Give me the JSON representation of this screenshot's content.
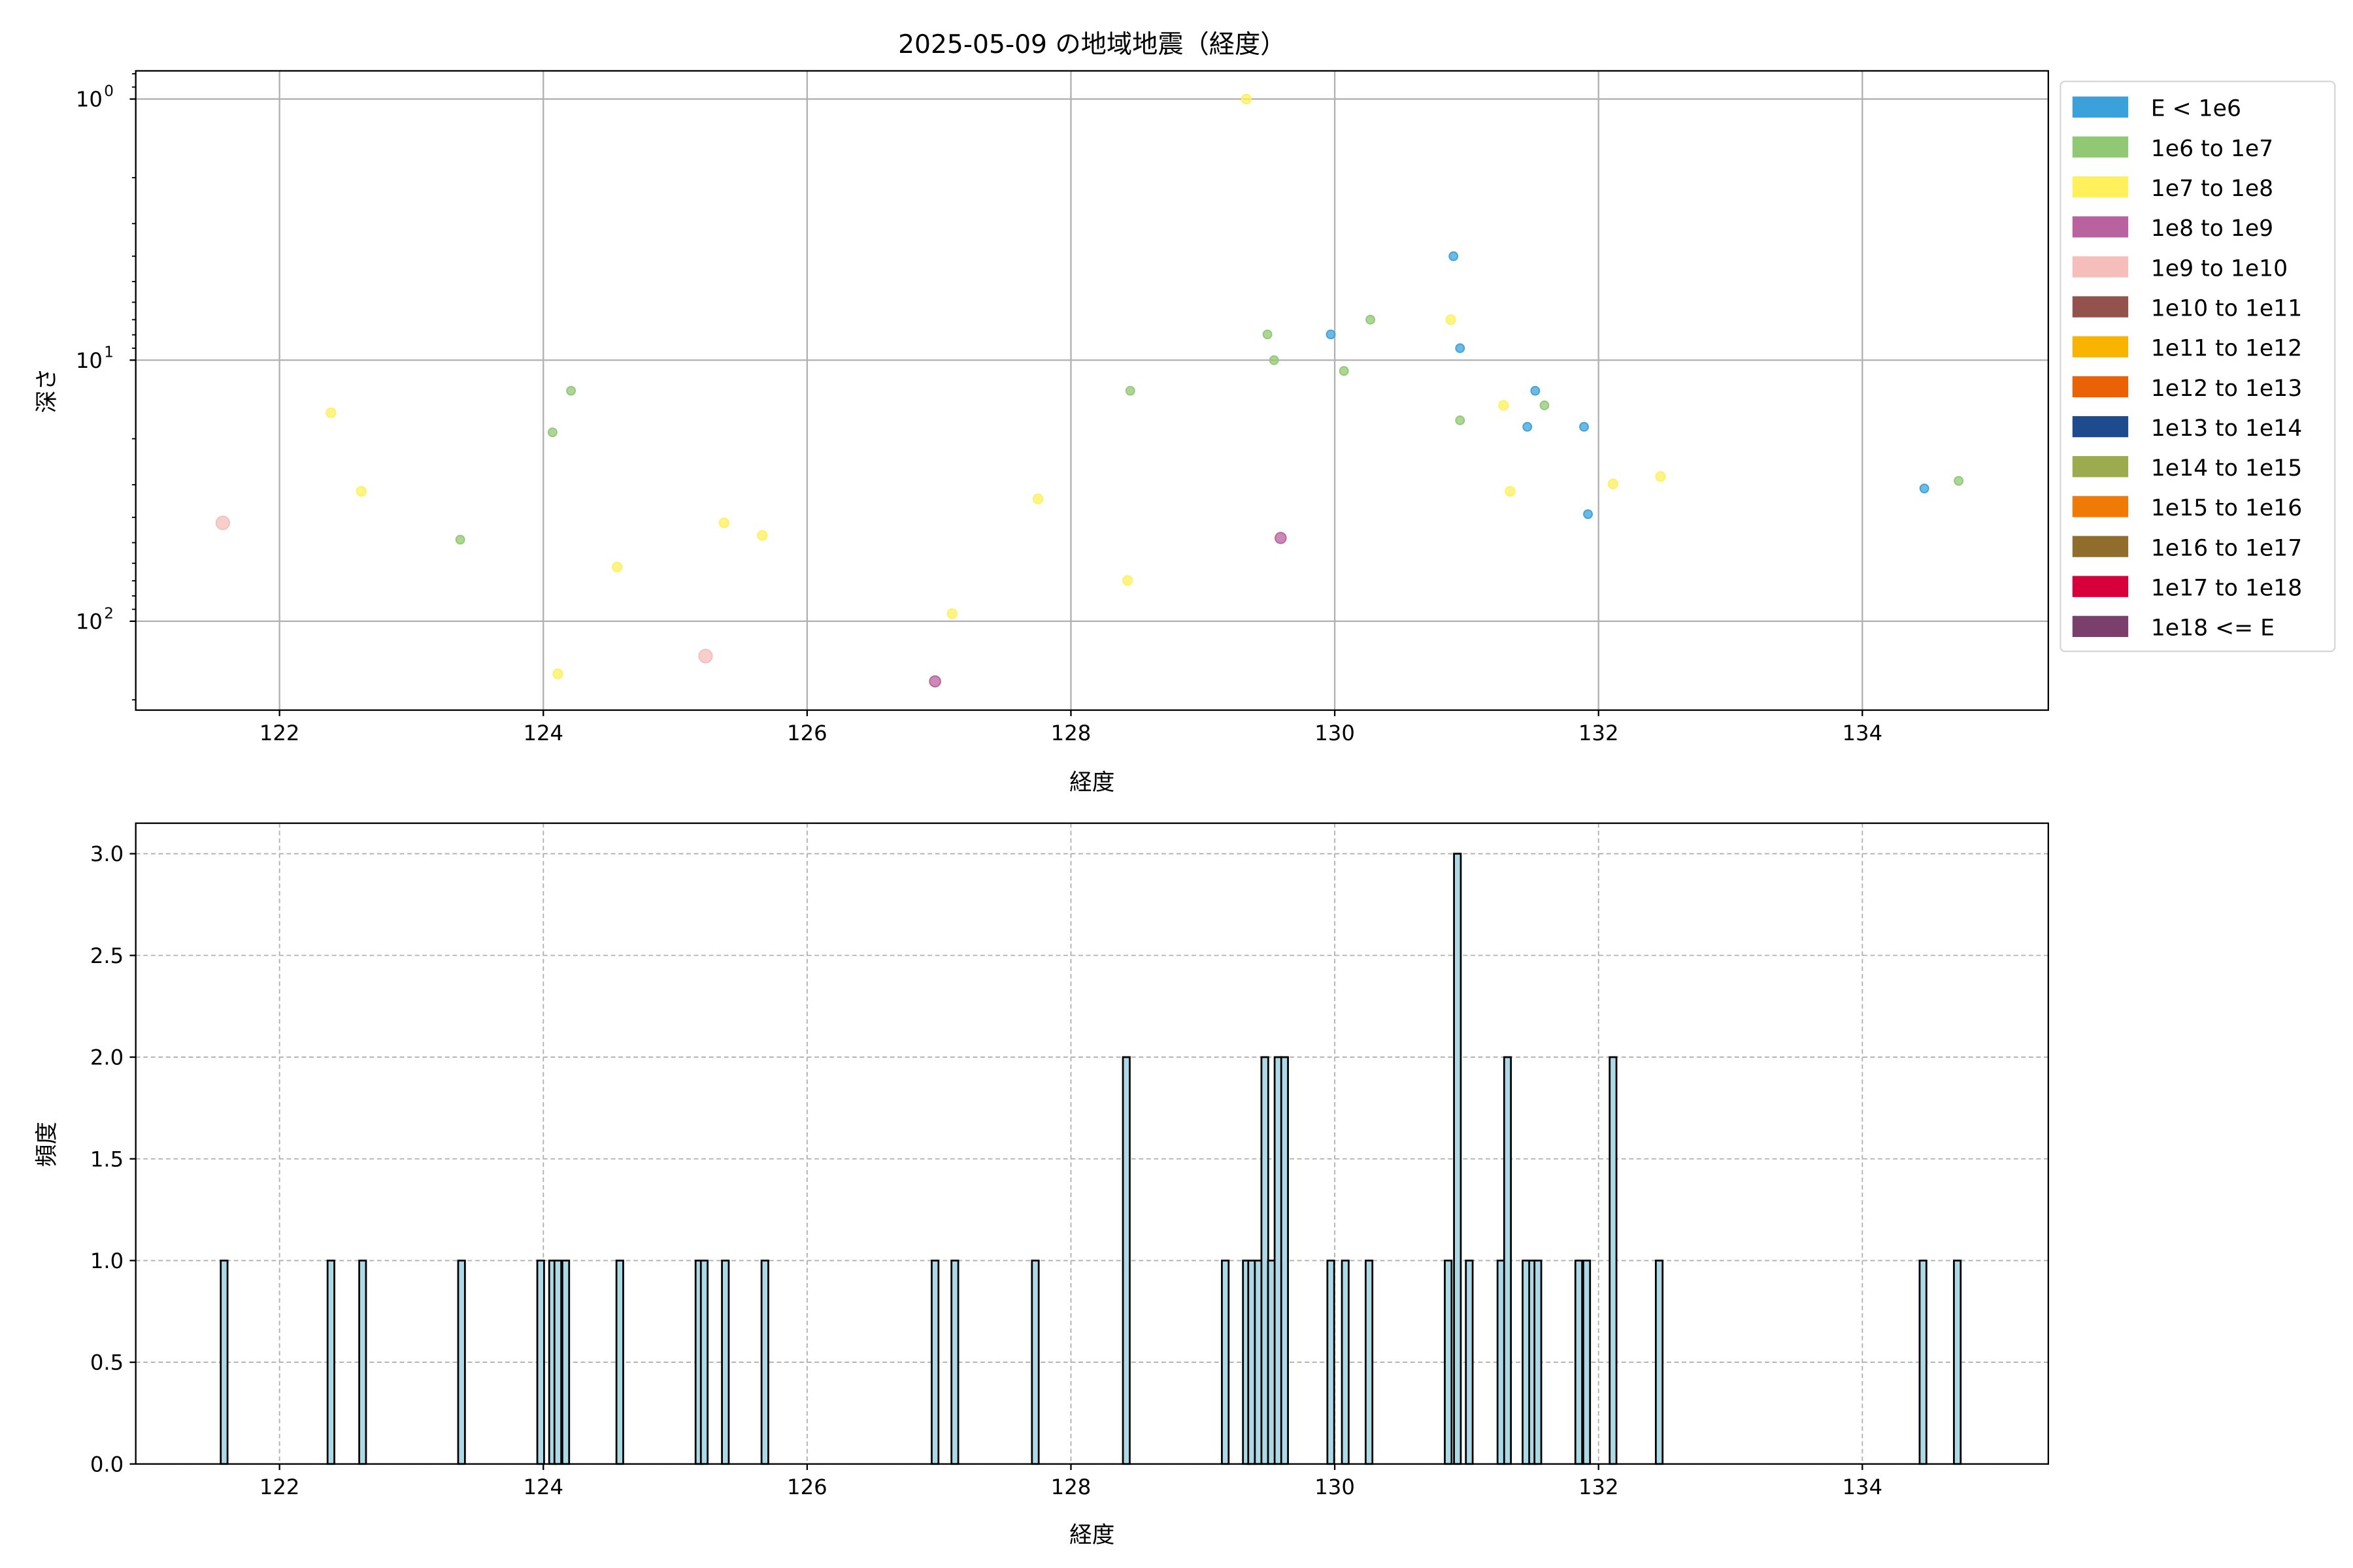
{
  "chart_data": [
    {
      "type": "scatter",
      "title": "2025-05-09 の地域地震（経度）",
      "xlabel": "経度",
      "ylabel": "深さ",
      "xlim": [
        120.91,
        135.41
      ],
      "ylim": [
        219,
        0.78
      ],
      "yscale": "log",
      "y_inverted": true,
      "grid": true,
      "legend_placement": "outside-right",
      "xticks": [
        "122",
        "124",
        "126",
        "128",
        "130",
        "132",
        "134"
      ],
      "yticks": [
        {
          "base": "10",
          "exp": "0",
          "value": 1
        },
        {
          "base": "10",
          "exp": "1",
          "value": 10
        },
        {
          "base": "10",
          "exp": "2",
          "value": 100
        }
      ],
      "legend": [
        {
          "label": "E < 1e6",
          "color": "#3ba1da"
        },
        {
          "label": "1e6 to 1e7",
          "color": "#91c873"
        },
        {
          "label": "1e7 to 1e8",
          "color": "#fff05c"
        },
        {
          "label": "1e8 to 1e9",
          "color": "#b9629f"
        },
        {
          "label": "1e9 to 1e10",
          "color": "#f6bebb"
        },
        {
          "label": "1e10 to 1e11",
          "color": "#94524c"
        },
        {
          "label": "1e11 to 1e12",
          "color": "#f8b400"
        },
        {
          "label": "1e12 to 1e13",
          "color": "#eb6105"
        },
        {
          "label": "1e13 to 1e14",
          "color": "#1e4a8e"
        },
        {
          "label": "1e14 to 1e15",
          "color": "#9bab4e"
        },
        {
          "label": "1e15 to 1e16",
          "color": "#ef7a06"
        },
        {
          "label": "1e16 to 1e17",
          "color": "#906c2d"
        },
        {
          "label": "1e17 to 1e18",
          "color": "#d8003a"
        },
        {
          "label": "1e18 <= E",
          "color": "#7b3f6d"
        }
      ],
      "points": [
        {
          "x": 121.57,
          "y": 42,
          "class": 4
        },
        {
          "x": 122.39,
          "y": 15.9,
          "class": 2
        },
        {
          "x": 122.62,
          "y": 31.8,
          "class": 2
        },
        {
          "x": 123.37,
          "y": 48.7,
          "class": 1
        },
        {
          "x": 124.07,
          "y": 18.9,
          "class": 1
        },
        {
          "x": 124.21,
          "y": 13.1,
          "class": 1
        },
        {
          "x": 124.11,
          "y": 159,
          "class": 2
        },
        {
          "x": 124.56,
          "y": 62,
          "class": 2
        },
        {
          "x": 125.23,
          "y": 136,
          "class": 4
        },
        {
          "x": 125.37,
          "y": 42,
          "class": 2
        },
        {
          "x": 125.66,
          "y": 46.9,
          "class": 2
        },
        {
          "x": 126.97,
          "y": 170,
          "class": 3
        },
        {
          "x": 127.1,
          "y": 93.5,
          "class": 2
        },
        {
          "x": 127.75,
          "y": 34,
          "class": 2
        },
        {
          "x": 128.45,
          "y": 13.1,
          "class": 1
        },
        {
          "x": 128.43,
          "y": 69.8,
          "class": 2
        },
        {
          "x": 129.33,
          "y": 1.0,
          "class": 2
        },
        {
          "x": 129.49,
          "y": 7.97,
          "class": 1
        },
        {
          "x": 129.54,
          "y": 10,
          "class": 1
        },
        {
          "x": 129.59,
          "y": 48,
          "class": 3
        },
        {
          "x": 129.97,
          "y": 7.97,
          "class": 0
        },
        {
          "x": 130.07,
          "y": 11,
          "class": 1
        },
        {
          "x": 130.27,
          "y": 7,
          "class": 1
        },
        {
          "x": 130.9,
          "y": 4,
          "class": 0
        },
        {
          "x": 130.88,
          "y": 7,
          "class": 2
        },
        {
          "x": 130.95,
          "y": 9,
          "class": 0
        },
        {
          "x": 130.95,
          "y": 17,
          "class": 1
        },
        {
          "x": 131.28,
          "y": 14.9,
          "class": 2
        },
        {
          "x": 131.33,
          "y": 31.8,
          "class": 2
        },
        {
          "x": 131.46,
          "y": 18,
          "class": 0
        },
        {
          "x": 131.52,
          "y": 13.1,
          "class": 0
        },
        {
          "x": 131.59,
          "y": 14.9,
          "class": 1
        },
        {
          "x": 131.89,
          "y": 18,
          "class": 0
        },
        {
          "x": 131.92,
          "y": 38.9,
          "class": 0
        },
        {
          "x": 132.11,
          "y": 29.8,
          "class": 2
        },
        {
          "x": 132.47,
          "y": 27.9,
          "class": 2
        },
        {
          "x": 134.47,
          "y": 31,
          "class": 0
        },
        {
          "x": 134.73,
          "y": 29,
          "class": 1
        }
      ]
    },
    {
      "type": "bar",
      "subtype": "histogram",
      "xlabel": "経度",
      "ylabel": "頻度",
      "xlim": [
        120.91,
        135.41
      ],
      "ylim": [
        0,
        3.15
      ],
      "grid": true,
      "grid_style": "dashed",
      "bar_color": "#add8e6",
      "edge_color": "#000000",
      "bin_width": 0.0514,
      "xticks": [
        "122",
        "124",
        "126",
        "128",
        "130",
        "132",
        "134"
      ],
      "yticks": [
        "0.0",
        "0.5",
        "1.0",
        "1.5",
        "2.0",
        "2.5",
        "3.0"
      ],
      "bins": [
        {
          "x": 121.58,
          "count": 1
        },
        {
          "x": 122.39,
          "count": 1
        },
        {
          "x": 122.63,
          "count": 1
        },
        {
          "x": 123.38,
          "count": 1
        },
        {
          "x": 123.98,
          "count": 1
        },
        {
          "x": 124.07,
          "count": 1
        },
        {
          "x": 124.11,
          "count": 1
        },
        {
          "x": 124.17,
          "count": 1
        },
        {
          "x": 124.58,
          "count": 1
        },
        {
          "x": 125.18,
          "count": 1
        },
        {
          "x": 125.22,
          "count": 1
        },
        {
          "x": 125.38,
          "count": 1
        },
        {
          "x": 125.68,
          "count": 1
        },
        {
          "x": 126.97,
          "count": 1
        },
        {
          "x": 127.12,
          "count": 1
        },
        {
          "x": 127.73,
          "count": 1
        },
        {
          "x": 128.42,
          "count": 2
        },
        {
          "x": 129.17,
          "count": 1
        },
        {
          "x": 129.33,
          "count": 1
        },
        {
          "x": 129.37,
          "count": 1
        },
        {
          "x": 129.42,
          "count": 1
        },
        {
          "x": 129.47,
          "count": 2
        },
        {
          "x": 129.52,
          "count": 1
        },
        {
          "x": 129.57,
          "count": 2
        },
        {
          "x": 129.62,
          "count": 2
        },
        {
          "x": 129.97,
          "count": 1
        },
        {
          "x": 130.08,
          "count": 1
        },
        {
          "x": 130.26,
          "count": 1
        },
        {
          "x": 130.86,
          "count": 1
        },
        {
          "x": 130.93,
          "count": 3
        },
        {
          "x": 131.02,
          "count": 1
        },
        {
          "x": 131.26,
          "count": 1
        },
        {
          "x": 131.31,
          "count": 2
        },
        {
          "x": 131.45,
          "count": 1
        },
        {
          "x": 131.5,
          "count": 1
        },
        {
          "x": 131.54,
          "count": 1
        },
        {
          "x": 131.85,
          "count": 1
        },
        {
          "x": 131.91,
          "count": 1
        },
        {
          "x": 132.11,
          "count": 2
        },
        {
          "x": 132.46,
          "count": 1
        },
        {
          "x": 134.46,
          "count": 1
        },
        {
          "x": 134.72,
          "count": 1
        }
      ]
    }
  ]
}
